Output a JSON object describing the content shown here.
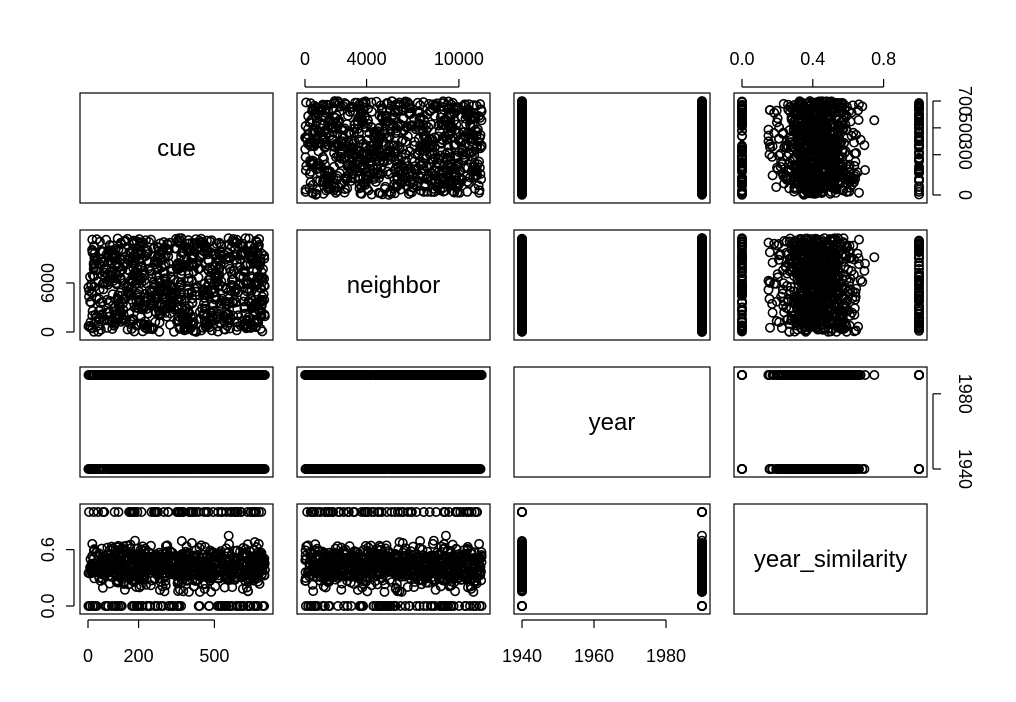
{
  "chart_data": {
    "type": "scatter",
    "variables": [
      "cue",
      "neighbor",
      "year",
      "year_similarity"
    ],
    "ranges": {
      "cue": [
        0,
        700
      ],
      "neighbor": [
        0,
        11500
      ],
      "year": [
        1940,
        1990
      ],
      "year_similarity": [
        0,
        1
      ]
    },
    "ticks": {
      "cue": [
        0,
        200,
        500
      ],
      "cue_right": [
        0,
        300,
        500,
        700
      ],
      "neighbor": [
        0,
        4000,
        10000
      ],
      "neighbor_left": [
        0,
        6000
      ],
      "year": [
        1940,
        1960,
        1980
      ],
      "year_right": [
        1940,
        1980
      ],
      "year_similarity_top": [
        0.0,
        0.4,
        0.8
      ],
      "year_similarity_left": [
        0.0,
        0.6
      ]
    },
    "tick_labels": {
      "cue_bottom": [
        "0",
        "200",
        "500"
      ],
      "cue_right": [
        "0",
        "300",
        "500",
        "700"
      ],
      "neighbor_top": [
        "0",
        "4000",
        "10000"
      ],
      "neighbor_left": [
        "0",
        "6000"
      ],
      "year_bottom": [
        "1940",
        "1960",
        "1980"
      ],
      "year_right": [
        "1940",
        "1980"
      ],
      "year_similarity_top": [
        "0.0",
        "0.4",
        "0.8"
      ],
      "year_similarity_left": [
        "0.0",
        "0.6"
      ]
    },
    "year_values": [
      1940,
      1990
    ],
    "grid": false,
    "legend": "none"
  }
}
